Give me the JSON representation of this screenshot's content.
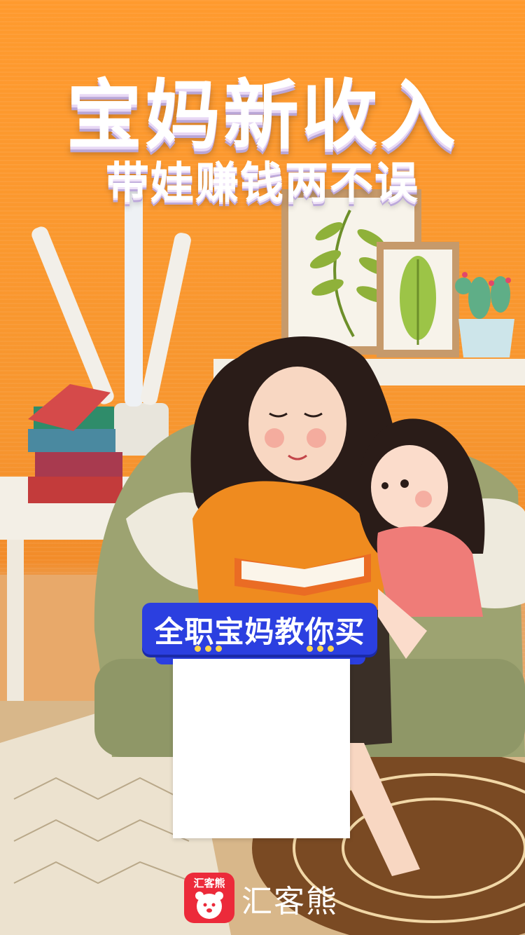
{
  "poster": {
    "title": "宝妈新收入",
    "subtitle": "带娃赚钱两不误",
    "badge_text": "全职宝妈教你买"
  },
  "brand": {
    "logo_text": "汇客熊",
    "name": "汇客熊"
  },
  "colors": {
    "background_orange": "#ff9a2e",
    "badge_blue": "#2b3fe0",
    "brand_red": "#ec2a3a"
  }
}
